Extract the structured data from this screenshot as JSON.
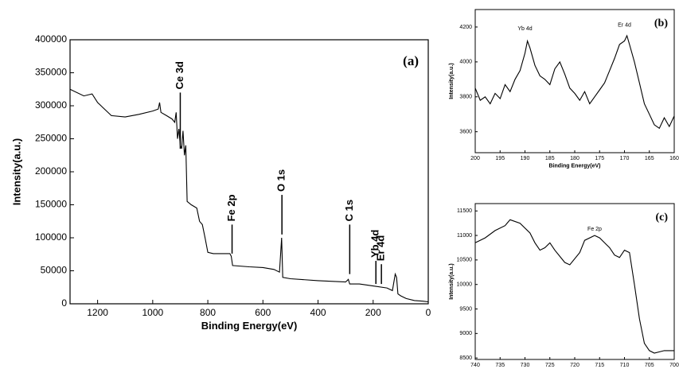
{
  "chart_data": [
    {
      "type": "line",
      "panel_label": "(a)",
      "xlabel": "Binding Energy(eV)",
      "ylabel": "Intensity(a.u.)",
      "color": "#000000",
      "xlim": [
        1300,
        0
      ],
      "xticks": [
        1200,
        1000,
        800,
        600,
        400,
        200,
        0
      ],
      "ylim": [
        0,
        400000
      ],
      "yticks": [
        0,
        50000,
        100000,
        150000,
        200000,
        250000,
        300000,
        350000,
        400000
      ],
      "x": [
        1300,
        1250,
        1220,
        1200,
        1150,
        1100,
        1050,
        1000,
        980,
        975,
        970,
        950,
        930,
        920,
        915,
        910,
        905,
        900,
        895,
        890,
        885,
        880,
        875,
        860,
        840,
        830,
        820,
        810,
        800,
        780,
        750,
        720,
        715,
        710,
        650,
        600,
        560,
        540,
        532,
        528,
        500,
        400,
        300,
        290,
        285,
        250,
        200,
        150,
        130,
        120,
        115,
        110,
        100,
        80,
        50,
        20,
        0
      ],
      "values": [
        325000,
        315000,
        318000,
        305000,
        285000,
        283000,
        287000,
        292000,
        295000,
        305000,
        290000,
        285000,
        280000,
        275000,
        290000,
        250000,
        265000,
        240000,
        235000,
        262000,
        225000,
        240000,
        155000,
        150000,
        145000,
        125000,
        120000,
        100000,
        78000,
        76000,
        76000,
        76000,
        72000,
        58000,
        56000,
        55000,
        52000,
        48000,
        100000,
        40000,
        38000,
        35000,
        33000,
        37000,
        30000,
        30000,
        27000,
        24000,
        20000,
        45000,
        40000,
        15000,
        12000,
        8000,
        5000,
        4000,
        3000
      ],
      "annotations": [
        {
          "text": "Ce 3d",
          "x": 900,
          "y0": 235000,
          "y1": 320000
        },
        {
          "text": "Fe 2p",
          "x": 712,
          "y0": 76000,
          "y1": 120000
        },
        {
          "text": "O 1s",
          "x": 531,
          "y0": 105000,
          "y1": 165000
        },
        {
          "text": "C 1s",
          "x": 285,
          "y0": 45000,
          "y1": 120000
        },
        {
          "text": "Yb 4d",
          "x": 190,
          "y0": 30000,
          "y1": 65000
        },
        {
          "text": "Er 4d",
          "x": 170,
          "y0": 30000,
          "y1": 60000
        }
      ]
    },
    {
      "type": "line",
      "panel_label": "(b)",
      "xlabel": "Binding Energy(eV)",
      "ylabel": "Intensity(a.u.)",
      "color": "#000000",
      "xlim": [
        200,
        160
      ],
      "xticks": [
        200,
        195,
        190,
        185,
        180,
        175,
        170,
        165,
        160
      ],
      "ylim": [
        3480,
        4300
      ],
      "yticks": [
        3600,
        3800,
        4000,
        4200
      ],
      "x": [
        200,
        199,
        198,
        197,
        196,
        195,
        194,
        193,
        192,
        191,
        190,
        189.5,
        189,
        188,
        187,
        186,
        185,
        184,
        183,
        182,
        181,
        180,
        179,
        178,
        177,
        176,
        175,
        174,
        173,
        172,
        171,
        170,
        169.5,
        169,
        168,
        167,
        166,
        165,
        164,
        163,
        162,
        161,
        160
      ],
      "values": [
        3850,
        3780,
        3800,
        3760,
        3820,
        3790,
        3870,
        3830,
        3900,
        3950,
        4050,
        4120,
        4080,
        3980,
        3920,
        3900,
        3870,
        3960,
        4000,
        3930,
        3850,
        3820,
        3780,
        3830,
        3760,
        3800,
        3840,
        3880,
        3950,
        4020,
        4100,
        4120,
        4150,
        4100,
        4000,
        3880,
        3760,
        3700,
        3640,
        3620,
        3680,
        3630,
        3690
      ],
      "annotations": [
        {
          "text": "Yb 4d",
          "x": 190,
          "y": 4190
        },
        {
          "text": "Er 4d",
          "x": 170,
          "y": 4210
        }
      ]
    },
    {
      "type": "line",
      "panel_label": "(c)",
      "xlabel": "Binding Energy(eV)",
      "ylabel": "Intensity(a.u.)",
      "color": "#000000",
      "xlim": [
        740,
        700
      ],
      "xticks": [
        740,
        735,
        730,
        725,
        720,
        715,
        710,
        705,
        700
      ],
      "ylim": [
        8470,
        11650
      ],
      "yticks": [
        8500,
        9000,
        9500,
        10000,
        10500,
        11000,
        11500
      ],
      "x": [
        740,
        738,
        736,
        734,
        733,
        731,
        729,
        728,
        727,
        726,
        725,
        724,
        722,
        721,
        719,
        718,
        716,
        715,
        713,
        712,
        711,
        710,
        709,
        708,
        707,
        706,
        705,
        704,
        702,
        700
      ],
      "values": [
        10850,
        10950,
        11100,
        11200,
        11320,
        11250,
        11050,
        10850,
        10700,
        10750,
        10850,
        10700,
        10450,
        10400,
        10650,
        10900,
        11000,
        10950,
        10750,
        10600,
        10550,
        10700,
        10650,
        10000,
        9300,
        8800,
        8650,
        8600,
        8650,
        8650
      ],
      "annotations": [
        {
          "text": "Fe 2p",
          "x": 716,
          "y": 11130
        }
      ]
    }
  ]
}
